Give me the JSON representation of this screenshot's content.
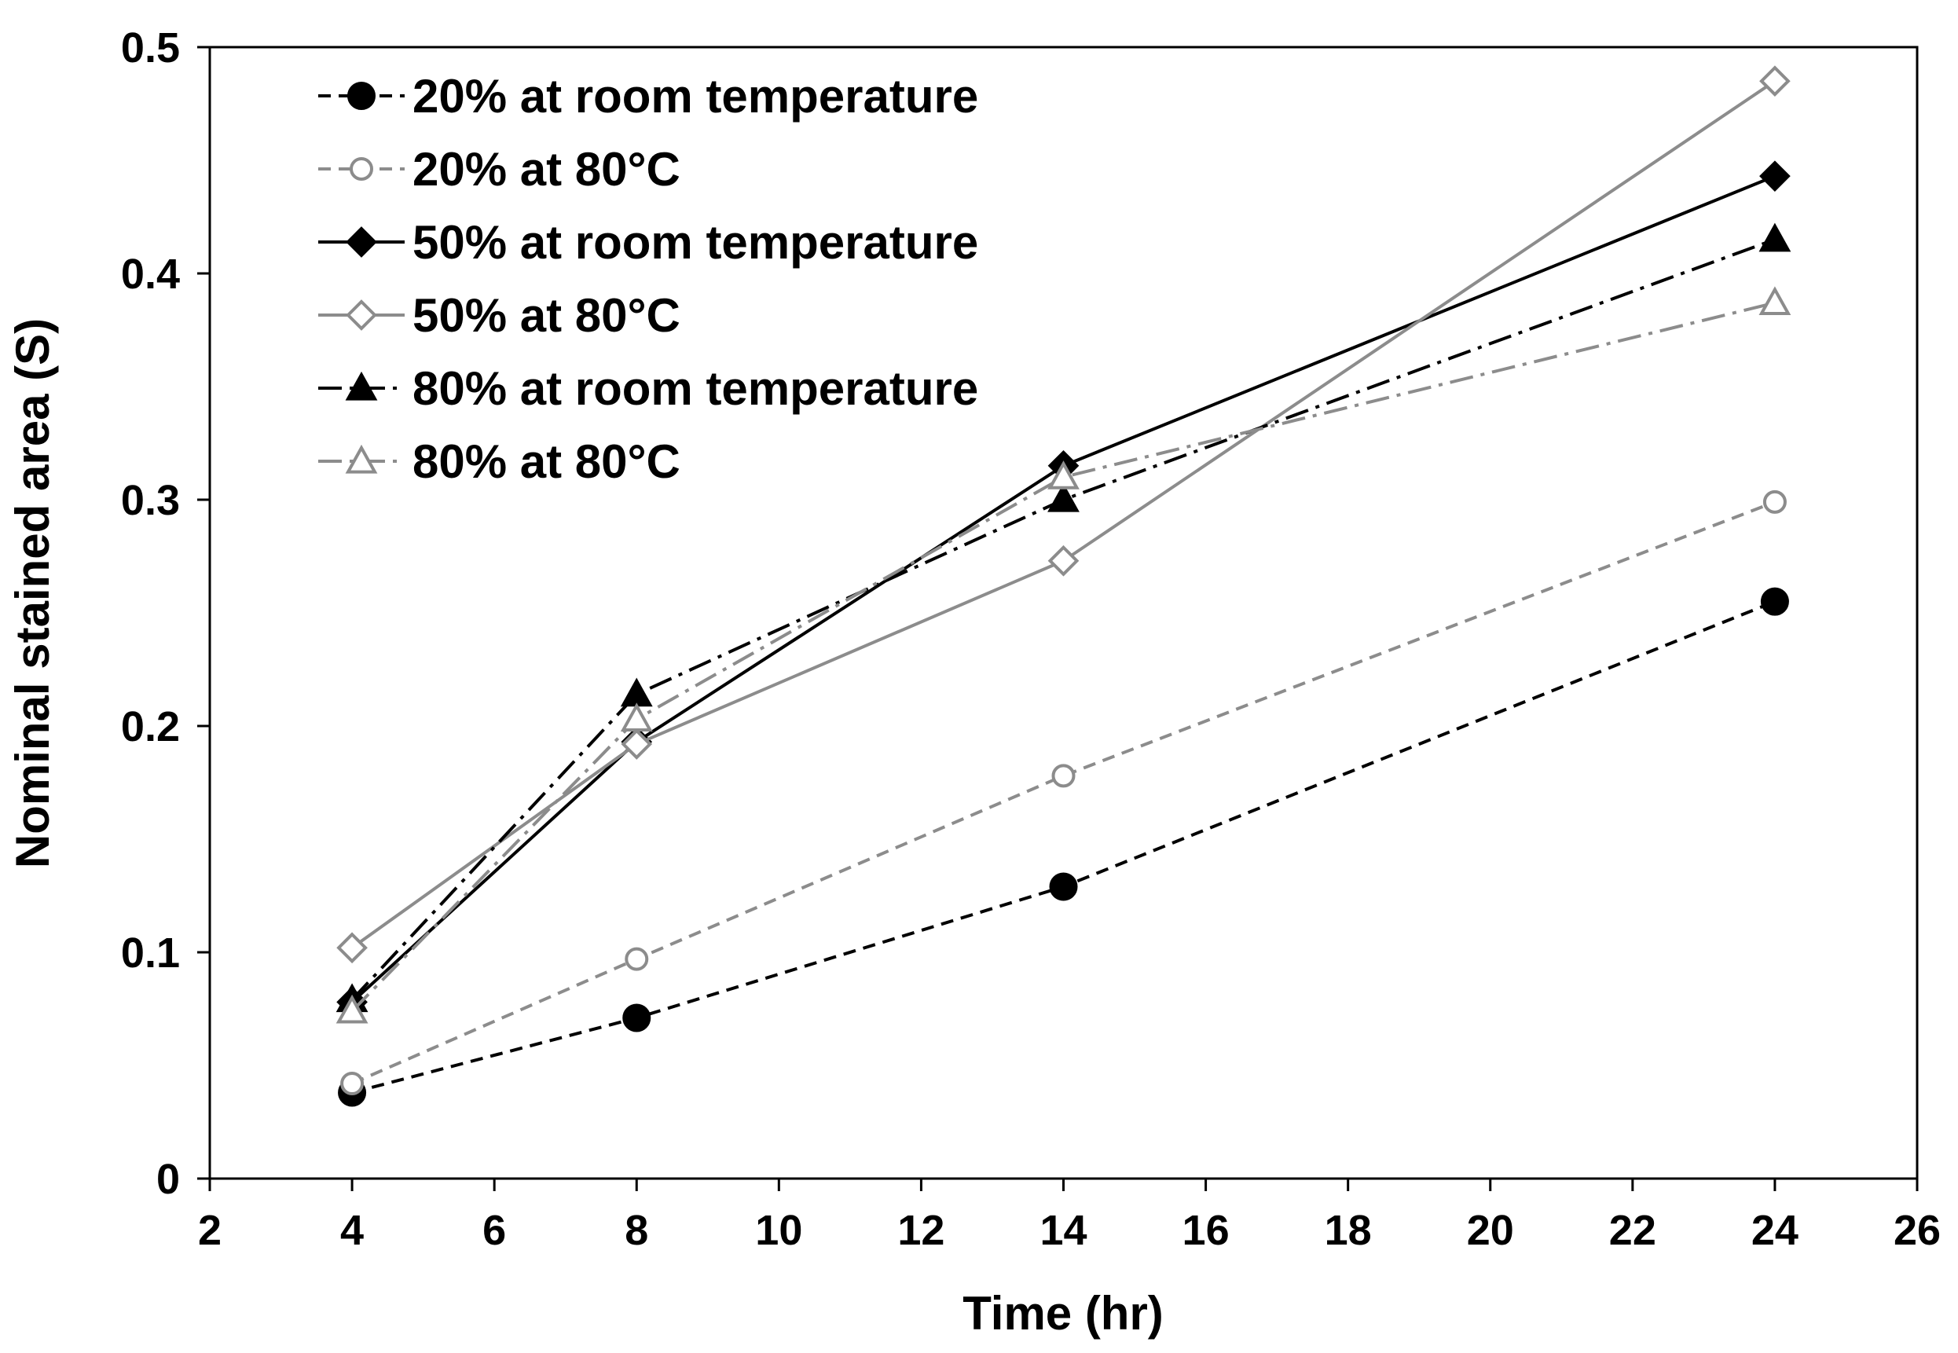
{
  "chart_data": {
    "type": "line",
    "title": "",
    "xlabel": "Time (hr)",
    "ylabel": "Nominal stained area (S)",
    "xlim": [
      2,
      26
    ],
    "ylim": [
      0,
      0.5
    ],
    "xticks": [
      2,
      4,
      6,
      8,
      10,
      12,
      14,
      16,
      18,
      20,
      22,
      24,
      26
    ],
    "yticks": [
      0,
      0.1,
      0.2,
      0.3,
      0.4,
      0.5
    ],
    "ytick_labels": [
      "0",
      "0.1",
      "0.2",
      "0.3",
      "0.4",
      "0.5"
    ],
    "grid": false,
    "legend_position": "top-left",
    "x": [
      4,
      8,
      14,
      24
    ],
    "series": [
      {
        "name": "20% at room temperature",
        "values": [
          0.038,
          0.071,
          0.129,
          0.255
        ],
        "color": "#000000",
        "line_style": "dashed",
        "marker": "circle",
        "marker_fill": "filled"
      },
      {
        "name": "20% at 80°C",
        "values": [
          0.042,
          0.097,
          0.178,
          0.299
        ],
        "color": "#8c8c8c",
        "line_style": "dashed",
        "marker": "circle",
        "marker_fill": "hollow"
      },
      {
        "name": "50% at room temperature",
        "values": [
          0.078,
          0.193,
          0.315,
          0.443
        ],
        "color": "#000000",
        "line_style": "solid",
        "marker": "diamond",
        "marker_fill": "filled"
      },
      {
        "name": "50% at 80°C",
        "values": [
          0.102,
          0.192,
          0.273,
          0.485
        ],
        "color": "#8c8c8c",
        "line_style": "solid",
        "marker": "diamond",
        "marker_fill": "hollow"
      },
      {
        "name": "80% at room temperature",
        "values": [
          0.079,
          0.214,
          0.3,
          0.415
        ],
        "color": "#000000",
        "line_style": "dashdot",
        "marker": "triangle",
        "marker_fill": "filled"
      },
      {
        "name": "80% at 80°C",
        "values": [
          0.074,
          0.203,
          0.31,
          0.387
        ],
        "color": "#8c8c8c",
        "line_style": "dashdot",
        "marker": "triangle",
        "marker_fill": "hollow"
      }
    ]
  }
}
